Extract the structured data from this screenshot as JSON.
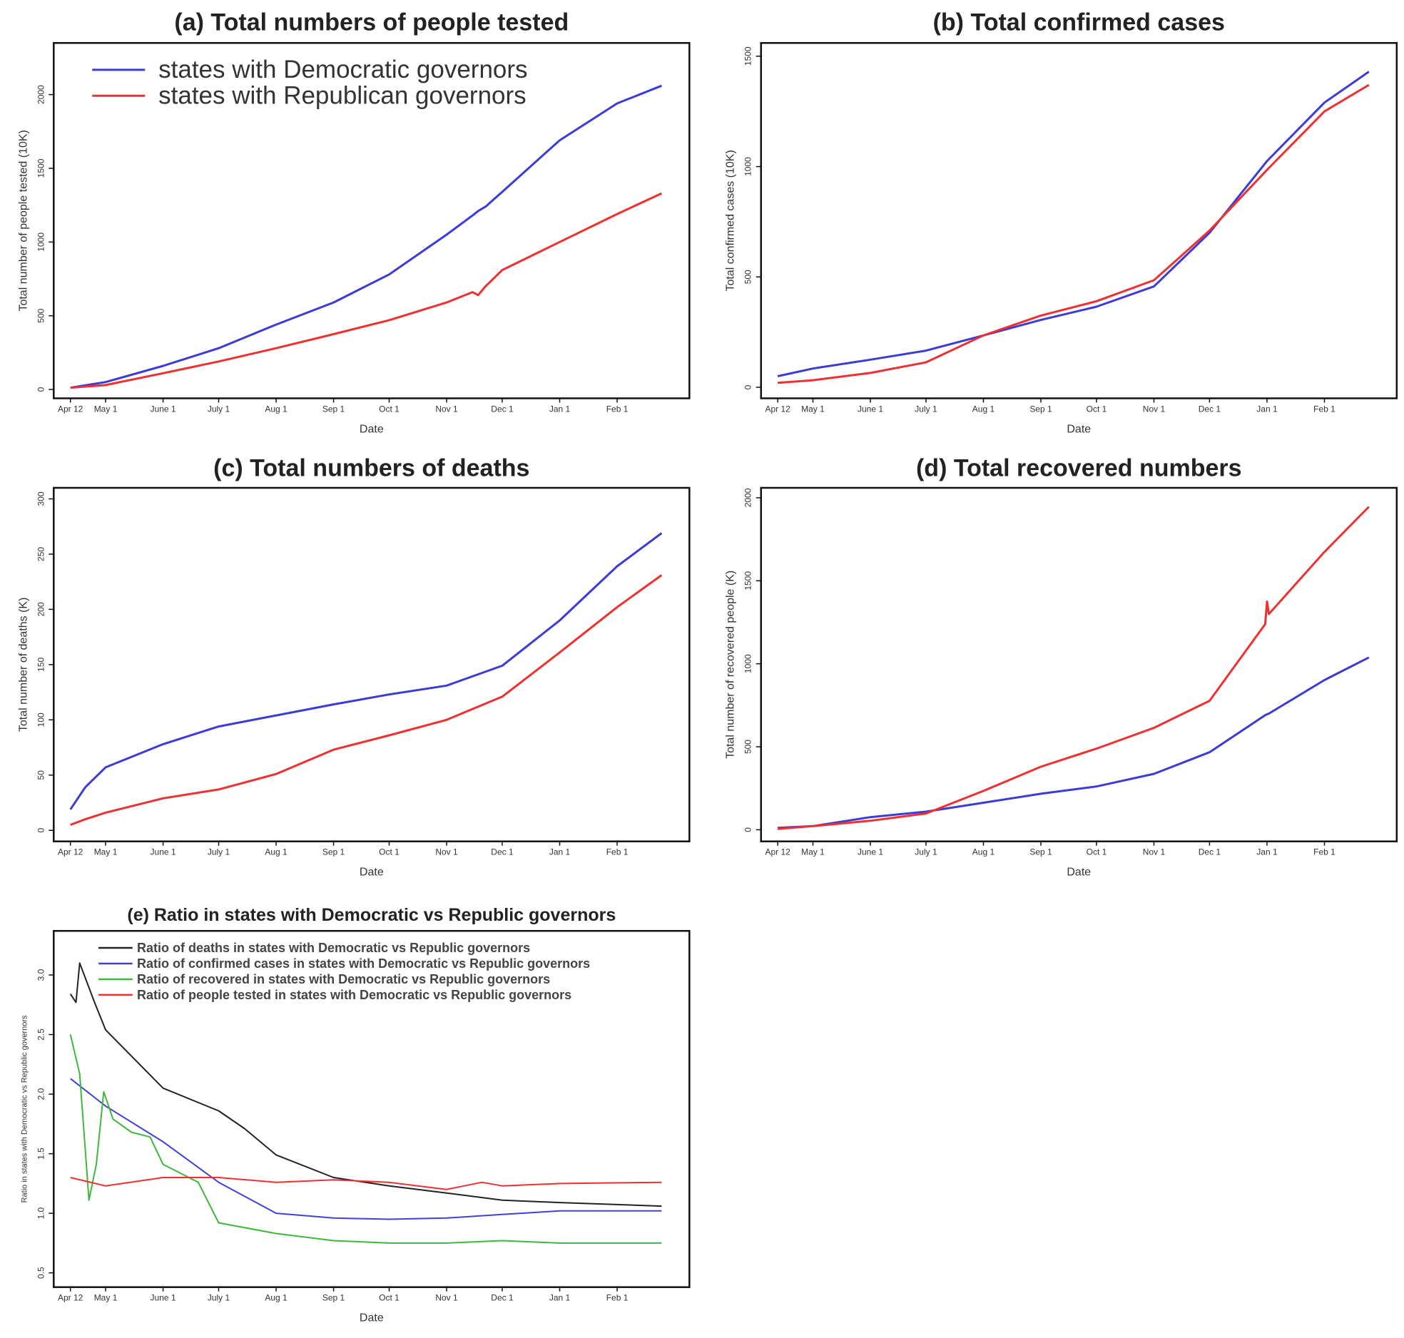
{
  "chart_data": [
    {
      "type": "line",
      "title": "(a) Total numbers of people tested",
      "xlabel": "Date",
      "ylabel": "Total number of people tested (10K)",
      "xlim": [
        "2020-04-03",
        "2021-03-12"
      ],
      "ylim": [
        -60,
        2350
      ],
      "x_ticks": [
        "2020-04-12",
        "2020-05-01",
        "2020-06-01",
        "2020-07-01",
        "2020-08-01",
        "2020-09-01",
        "2020-10-01",
        "2020-11-01",
        "2020-12-01",
        "2021-01-01",
        "2021-02-01"
      ],
      "x_tick_labels": [
        "Apr 12",
        "May 1",
        "June 1",
        "July 1",
        "Aug 1",
        "Sep 1",
        "Oct 1",
        "Nov 1",
        "Dec 1",
        "Jan 1",
        "Feb 1"
      ],
      "y_ticks": [
        0,
        500,
        1000,
        1500,
        2000
      ],
      "y_tick_labels": [
        "0",
        "500",
        "1000",
        "1500",
        "2000"
      ],
      "grid": false,
      "legend": "top-left",
      "x": [
        "2020-04-12",
        "2020-05-01",
        "2020-06-01",
        "2020-07-01",
        "2020-08-01",
        "2020-09-01",
        "2020-10-01",
        "2020-11-01",
        "2020-11-15",
        "2020-11-18",
        "2020-11-22",
        "2020-12-01",
        "2021-01-01",
        "2021-02-01",
        "2021-02-25"
      ],
      "series": [
        {
          "name": "states with Democratic governors",
          "color": "#3b3bd6",
          "values": [
            12,
            50,
            160,
            280,
            440,
            590,
            780,
            1050,
            1180,
            1210,
            1240,
            1340,
            1690,
            1940,
            2060
          ]
        },
        {
          "name": "states with Republican governors",
          "color": "#f03030",
          "values": [
            12,
            30,
            110,
            190,
            280,
            375,
            470,
            590,
            660,
            640,
            700,
            810,
            1000,
            1190,
            1330
          ]
        }
      ]
    },
    {
      "type": "line",
      "title": "(b) Total confirmed cases",
      "xlabel": "Date",
      "ylabel": "Total confirmed cases (10K)",
      "xlim": [
        "2020-04-03",
        "2021-03-12"
      ],
      "ylim": [
        -50,
        1560
      ],
      "x_ticks": [
        "2020-04-12",
        "2020-05-01",
        "2020-06-01",
        "2020-07-01",
        "2020-08-01",
        "2020-09-01",
        "2020-10-01",
        "2020-11-01",
        "2020-12-01",
        "2021-01-01",
        "2021-02-01"
      ],
      "x_tick_labels": [
        "Apr 12",
        "May 1",
        "June 1",
        "July 1",
        "Aug 1",
        "Sep 1",
        "Oct 1",
        "Nov 1",
        "Dec 1",
        "Jan 1",
        "Feb 1"
      ],
      "y_ticks": [
        0,
        500,
        1000,
        1500
      ],
      "y_tick_labels": [
        "0",
        "500",
        "1000",
        "1500"
      ],
      "grid": false,
      "x": [
        "2020-04-12",
        "2020-05-01",
        "2020-06-01",
        "2020-07-01",
        "2020-08-01",
        "2020-09-01",
        "2020-10-01",
        "2020-11-01",
        "2020-12-01",
        "2021-01-01",
        "2021-02-01",
        "2021-02-25"
      ],
      "series": [
        {
          "color": "#3b3bd6",
          "values": [
            50,
            85,
            125,
            166,
            235,
            305,
            365,
            457,
            700,
            1025,
            1290,
            1430
          ]
        },
        {
          "color": "#f03030",
          "values": [
            20,
            32,
            65,
            113,
            235,
            325,
            390,
            485,
            710,
            985,
            1250,
            1370
          ]
        }
      ]
    },
    {
      "type": "line",
      "title": "(c) Total numbers of deaths",
      "xlabel": "Date",
      "ylabel": "Total number of deaths (K)",
      "xlim": [
        "2020-04-03",
        "2021-03-12"
      ],
      "ylim": [
        -10,
        310
      ],
      "x_ticks": [
        "2020-04-12",
        "2020-05-01",
        "2020-06-01",
        "2020-07-01",
        "2020-08-01",
        "2020-09-01",
        "2020-10-01",
        "2020-11-01",
        "2020-12-01",
        "2021-01-01",
        "2021-02-01"
      ],
      "x_tick_labels": [
        "Apr 12",
        "May 1",
        "June 1",
        "July 1",
        "Aug 1",
        "Sep 1",
        "Oct 1",
        "Nov 1",
        "Dec 1",
        "Jan 1",
        "Feb 1"
      ],
      "y_ticks": [
        0,
        50,
        100,
        150,
        200,
        250,
        300
      ],
      "y_tick_labels": [
        "0",
        "50",
        "100",
        "150",
        "200",
        "250",
        "300"
      ],
      "grid": false,
      "x": [
        "2020-04-12",
        "2020-04-20",
        "2020-05-01",
        "2020-06-01",
        "2020-07-01",
        "2020-08-01",
        "2020-09-01",
        "2020-10-01",
        "2020-11-01",
        "2020-12-01",
        "2021-01-01",
        "2021-02-01",
        "2021-02-25"
      ],
      "series": [
        {
          "color": "#3b3bd6",
          "values": [
            19,
            39,
            57,
            78,
            94,
            104,
            114,
            123,
            131,
            149,
            190,
            239,
            269
          ]
        },
        {
          "color": "#f03030",
          "values": [
            5,
            10,
            16,
            29,
            37,
            51,
            73,
            86,
            100,
            121,
            161,
            202,
            231
          ]
        }
      ]
    },
    {
      "type": "line",
      "title": "(d) Total recovered numbers",
      "xlabel": "Date",
      "ylabel": "Total number of recovered people (K)",
      "xlim": [
        "2020-04-03",
        "2021-03-12"
      ],
      "ylim": [
        -70,
        2060
      ],
      "x_ticks": [
        "2020-04-12",
        "2020-05-01",
        "2020-06-01",
        "2020-07-01",
        "2020-08-01",
        "2020-09-01",
        "2020-10-01",
        "2020-11-01",
        "2020-12-01",
        "2021-01-01",
        "2021-02-01"
      ],
      "x_tick_labels": [
        "Apr 12",
        "May 1",
        "June 1",
        "July 1",
        "Aug 1",
        "Sep 1",
        "Oct 1",
        "Nov 1",
        "Dec 1",
        "Jan 1",
        "Feb 1"
      ],
      "y_ticks": [
        0,
        500,
        1000,
        1500,
        2000
      ],
      "y_tick_labels": [
        "0",
        "500",
        "1000",
        "1500",
        "2000"
      ],
      "grid": false,
      "x": [
        "2020-04-12",
        "2020-05-01",
        "2020-06-01",
        "2020-07-01",
        "2020-08-01",
        "2020-09-01",
        "2020-10-01",
        "2020-11-01",
        "2020-12-01",
        "2020-12-31",
        "2021-01-01",
        "2021-01-02",
        "2021-02-01",
        "2021-02-25"
      ],
      "series": [
        {
          "color": "#3b3bd6",
          "values": [
            11,
            22,
            76,
            109,
            163,
            217,
            261,
            337,
            467,
            690,
            696,
            700,
            902,
            1038
          ]
        },
        {
          "color": "#f03030",
          "values": [
            5,
            22,
            54,
            98,
            234,
            380,
            489,
            614,
            777,
            1239,
            1375,
            1300,
            1674,
            1946
          ]
        }
      ]
    },
    {
      "type": "line",
      "title": "(e) Ratio in states with Democratic vs Republic governors",
      "xlabel": "Date",
      "ylabel": "Ratio in states with Democratic vs Republic governors",
      "xlim": [
        "2020-04-03",
        "2021-03-12"
      ],
      "ylim": [
        0.38,
        3.37
      ],
      "x_ticks": [
        "2020-04-12",
        "2020-05-01",
        "2020-06-01",
        "2020-07-01",
        "2020-08-01",
        "2020-09-01",
        "2020-10-01",
        "2020-11-01",
        "2020-12-01",
        "2021-01-01",
        "2021-02-01"
      ],
      "x_tick_labels": [
        "Apr 12",
        "May 1",
        "June 1",
        "July 1",
        "Aug 1",
        "Sep 1",
        "Oct 1",
        "Nov 1",
        "Dec 1",
        "Jan 1",
        "Feb 1"
      ],
      "y_ticks": [
        0.5,
        1.0,
        1.5,
        2.0,
        2.5,
        3.0
      ],
      "y_tick_labels": [
        "0.5",
        "1.0",
        "1.5",
        "2.0",
        "2.5",
        "3.0"
      ],
      "grid": false,
      "legend": "top",
      "series": [
        {
          "name": "Ratio of deaths in states with Democratic vs Republic governors",
          "color": "#222222",
          "x": [
            "2020-04-12",
            "2020-04-15",
            "2020-04-17",
            "2020-04-25",
            "2020-05-01",
            "2020-06-01",
            "2020-07-01",
            "2020-07-15",
            "2020-08-01",
            "2020-09-01",
            "2020-10-01",
            "2020-11-01",
            "2020-12-01",
            "2021-01-01",
            "2021-02-25"
          ],
          "values": [
            2.84,
            2.77,
            3.1,
            2.77,
            2.54,
            2.05,
            1.86,
            1.71,
            1.49,
            1.3,
            1.23,
            1.17,
            1.11,
            1.09,
            1.06
          ]
        },
        {
          "name": "Ratio of confirmed cases in states with Democratic vs Republic governors",
          "color": "#4040d8",
          "x": [
            "2020-04-12",
            "2020-05-01",
            "2020-06-01",
            "2020-07-01",
            "2020-08-01",
            "2020-09-01",
            "2020-10-01",
            "2020-11-01",
            "2020-12-01",
            "2021-01-01",
            "2021-02-25"
          ],
          "values": [
            2.13,
            1.9,
            1.6,
            1.26,
            1.0,
            0.96,
            0.95,
            0.96,
            0.99,
            1.02,
            1.02
          ]
        },
        {
          "name": "Ratio of recovered in states with Democratic vs Republic governors",
          "color": "#3cb83c",
          "x": [
            "2020-04-12",
            "2020-04-17",
            "2020-04-22",
            "2020-04-26",
            "2020-04-30",
            "2020-05-05",
            "2020-05-15",
            "2020-05-25",
            "2020-06-01",
            "2020-06-20",
            "2020-07-01",
            "2020-08-01",
            "2020-09-01",
            "2020-10-01",
            "2020-11-01",
            "2020-12-01",
            "2021-01-01",
            "2021-02-25"
          ],
          "values": [
            2.5,
            2.17,
            1.11,
            1.41,
            2.02,
            1.79,
            1.68,
            1.64,
            1.41,
            1.26,
            0.92,
            0.83,
            0.77,
            0.75,
            0.75,
            0.77,
            0.75,
            0.75
          ]
        },
        {
          "name": "Ratio of people tested in states with Democratic vs Republic governors",
          "color": "#f03030",
          "x": [
            "2020-04-12",
            "2020-05-01",
            "2020-06-01",
            "2020-07-01",
            "2020-08-01",
            "2020-09-01",
            "2020-10-01",
            "2020-11-01",
            "2020-11-20",
            "2020-12-01",
            "2021-01-01",
            "2021-02-25"
          ],
          "values": [
            1.3,
            1.23,
            1.3,
            1.3,
            1.26,
            1.28,
            1.26,
            1.2,
            1.26,
            1.23,
            1.25,
            1.26
          ]
        }
      ]
    }
  ]
}
